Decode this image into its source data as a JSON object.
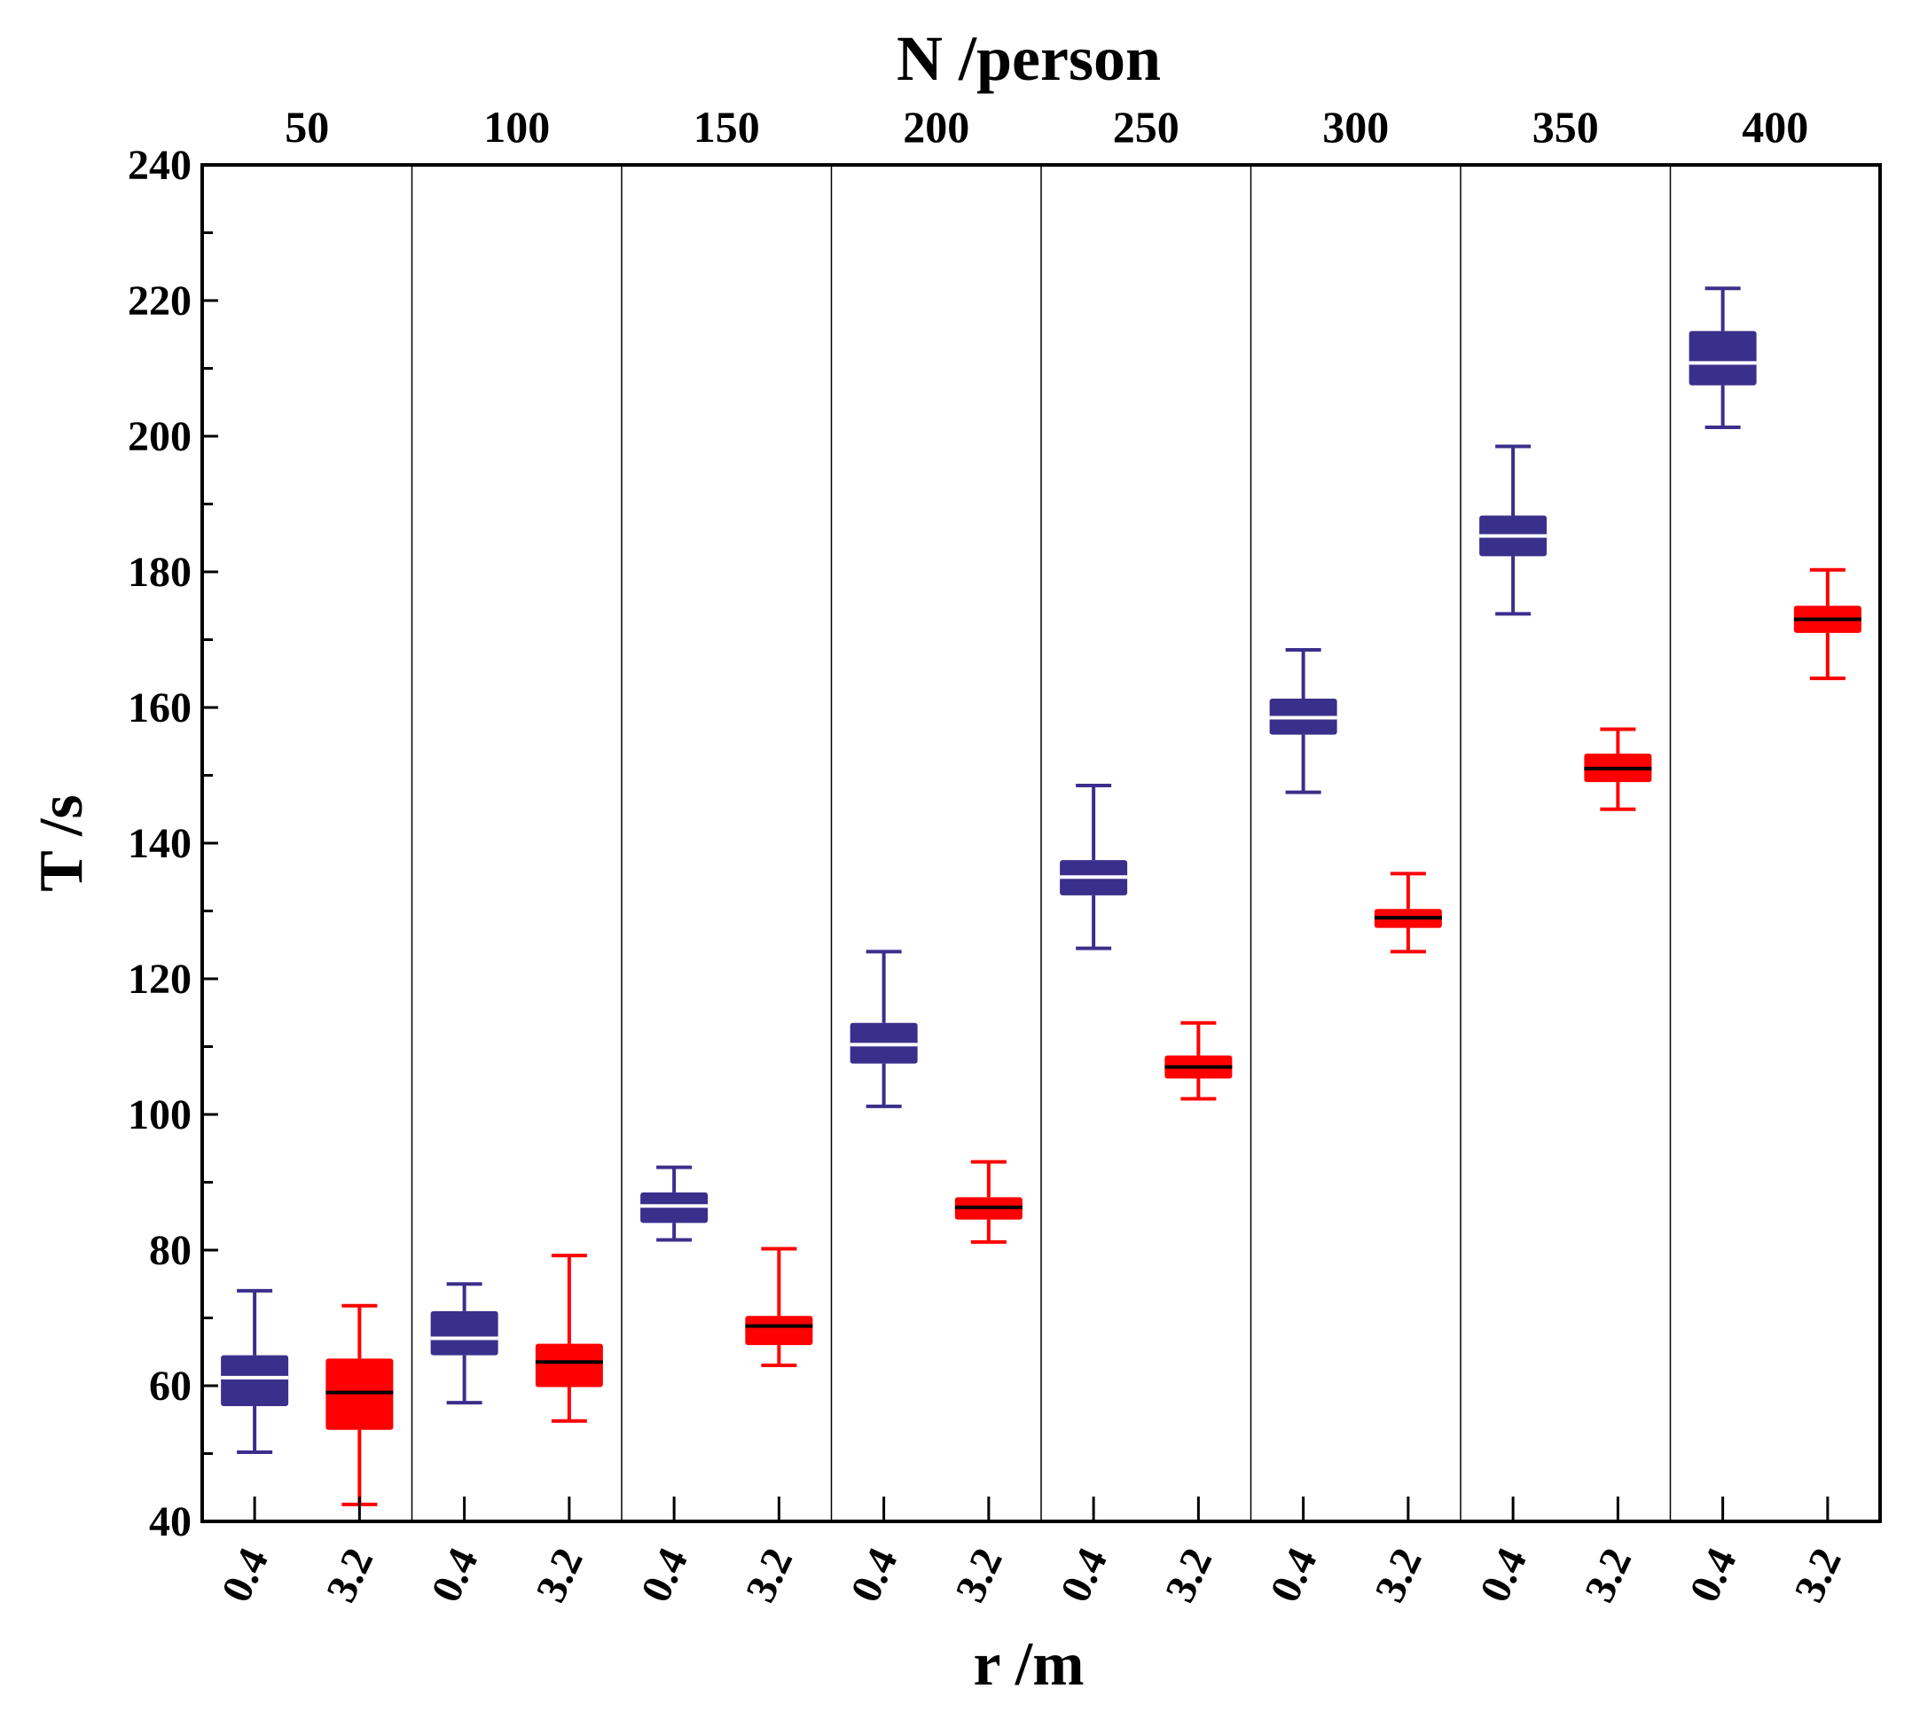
{
  "chart_data": {
    "type": "box",
    "title": "",
    "top_axis_label": "N /person",
    "xlabel": "r /m",
    "ylabel": "T /s",
    "ylim": [
      40,
      240
    ],
    "y_ticks": [
      40,
      60,
      80,
      100,
      120,
      140,
      160,
      180,
      200,
      220,
      240
    ],
    "groups": [
      "50",
      "100",
      "150",
      "200",
      "250",
      "300",
      "350",
      "400"
    ],
    "sub_categories": [
      "0.4",
      "3.2"
    ],
    "series_colors": {
      "0.4": "#3b2f8c",
      "3.2": "#ff0000"
    },
    "median_colors": {
      "0.4": "#ffffff",
      "3.2": "#000000"
    },
    "boxes": [
      {
        "group": "50",
        "r": "0.4",
        "whisker_low": 50.2,
        "q1": 57.0,
        "median": 61.2,
        "q3": 64.5,
        "whisker_high": 74.0
      },
      {
        "group": "50",
        "r": "3.2",
        "whisker_low": 42.5,
        "q1": 53.5,
        "median": 59.0,
        "q3": 64.0,
        "whisker_high": 71.8
      },
      {
        "group": "100",
        "r": "0.4",
        "whisker_low": 57.5,
        "q1": 64.5,
        "median": 67.0,
        "q3": 71.0,
        "whisker_high": 75.0
      },
      {
        "group": "100",
        "r": "3.2",
        "whisker_low": 54.8,
        "q1": 59.8,
        "median": 63.5,
        "q3": 66.2,
        "whisker_high": 79.2
      },
      {
        "group": "150",
        "r": "0.4",
        "whisker_low": 81.5,
        "q1": 84.0,
        "median": 86.5,
        "q3": 88.5,
        "whisker_high": 92.2
      },
      {
        "group": "150",
        "r": "3.2",
        "whisker_low": 63.0,
        "q1": 66.0,
        "median": 68.8,
        "q3": 70.3,
        "whisker_high": 80.2
      },
      {
        "group": "200",
        "r": "0.4",
        "whisker_low": 101.2,
        "q1": 107.5,
        "median": 110.3,
        "q3": 113.5,
        "whisker_high": 124.0
      },
      {
        "group": "200",
        "r": "3.2",
        "whisker_low": 81.2,
        "q1": 84.5,
        "median": 86.3,
        "q3": 87.8,
        "whisker_high": 93.0
      },
      {
        "group": "250",
        "r": "0.4",
        "whisker_low": 124.5,
        "q1": 132.3,
        "median": 135.0,
        "q3": 137.5,
        "whisker_high": 148.5
      },
      {
        "group": "250",
        "r": "3.2",
        "whisker_low": 102.3,
        "q1": 105.3,
        "median": 107.0,
        "q3": 108.7,
        "whisker_high": 113.5
      },
      {
        "group": "300",
        "r": "0.4",
        "whisker_low": 147.5,
        "q1": 156.0,
        "median": 158.5,
        "q3": 161.3,
        "whisker_high": 168.5
      },
      {
        "group": "300",
        "r": "3.2",
        "whisker_low": 124.0,
        "q1": 127.5,
        "median": 129.0,
        "q3": 130.3,
        "whisker_high": 135.5
      },
      {
        "group": "350",
        "r": "0.4",
        "whisker_low": 173.8,
        "q1": 182.3,
        "median": 185.3,
        "q3": 188.3,
        "whisker_high": 198.5
      },
      {
        "group": "350",
        "r": "3.2",
        "whisker_low": 145.0,
        "q1": 149.0,
        "median": 151.0,
        "q3": 153.2,
        "whisker_high": 156.8
      },
      {
        "group": "400",
        "r": "0.4",
        "whisker_low": 201.3,
        "q1": 207.5,
        "median": 210.8,
        "q3": 215.5,
        "whisker_high": 221.8
      },
      {
        "group": "400",
        "r": "3.2",
        "whisker_low": 164.3,
        "q1": 171.0,
        "median": 173.0,
        "q3": 175.0,
        "whisker_high": 180.3
      }
    ]
  }
}
